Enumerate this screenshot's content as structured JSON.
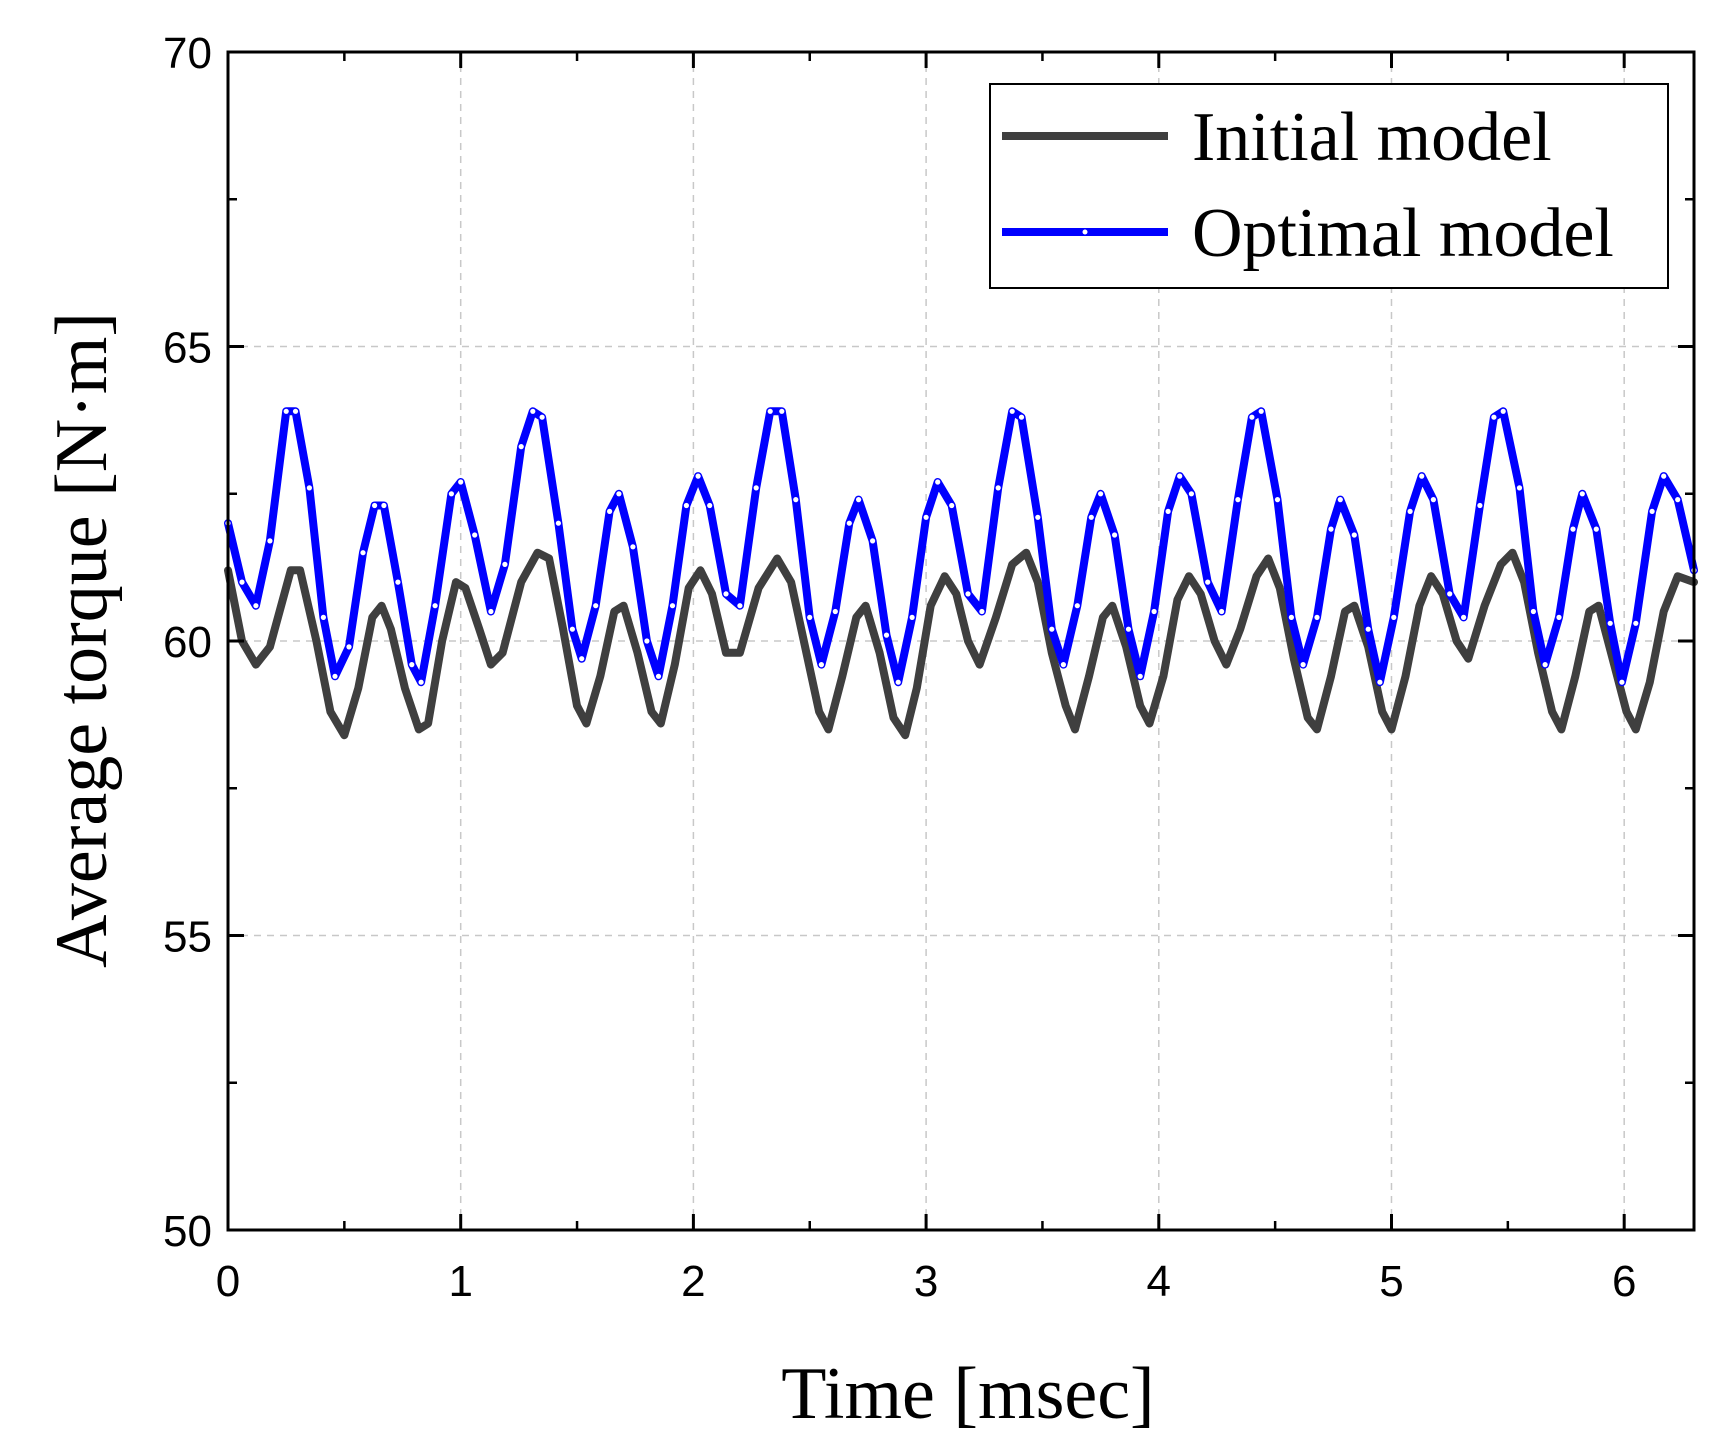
{
  "chart_data": {
    "type": "line",
    "xlabel": "Time [msec]",
    "ylabel": "Average torque [N·m]",
    "xlim": [
      0,
      6.3
    ],
    "ylim": [
      50,
      70
    ],
    "xticks": [
      "0",
      "1",
      "2",
      "3",
      "4",
      "5",
      "6"
    ],
    "yticks": [
      "50",
      "55",
      "60",
      "65",
      "70"
    ],
    "grid": true,
    "legend_position": "top-right",
    "series": [
      {
        "name": "Initial model",
        "color": "#3f3f3f",
        "points": [
          [
            0.0,
            61.2
          ],
          [
            0.06,
            60.0
          ],
          [
            0.12,
            59.6
          ],
          [
            0.18,
            59.9
          ],
          [
            0.27,
            61.2
          ],
          [
            0.31,
            61.2
          ],
          [
            0.38,
            60.0
          ],
          [
            0.44,
            58.8
          ],
          [
            0.5,
            58.4
          ],
          [
            0.56,
            59.2
          ],
          [
            0.62,
            60.4
          ],
          [
            0.66,
            60.6
          ],
          [
            0.7,
            60.2
          ],
          [
            0.76,
            59.2
          ],
          [
            0.82,
            58.5
          ],
          [
            0.86,
            58.6
          ],
          [
            0.92,
            60.0
          ],
          [
            0.98,
            61.0
          ],
          [
            1.02,
            60.9
          ],
          [
            1.08,
            60.2
          ],
          [
            1.13,
            59.6
          ],
          [
            1.18,
            59.8
          ],
          [
            1.26,
            61.0
          ],
          [
            1.33,
            61.5
          ],
          [
            1.38,
            61.4
          ],
          [
            1.44,
            60.2
          ],
          [
            1.5,
            58.9
          ],
          [
            1.54,
            58.6
          ],
          [
            1.6,
            59.4
          ],
          [
            1.66,
            60.5
          ],
          [
            1.7,
            60.6
          ],
          [
            1.76,
            59.8
          ],
          [
            1.82,
            58.8
          ],
          [
            1.86,
            58.6
          ],
          [
            1.92,
            59.6
          ],
          [
            1.98,
            60.9
          ],
          [
            2.03,
            61.2
          ],
          [
            2.08,
            60.8
          ],
          [
            2.14,
            59.8
          ],
          [
            2.2,
            59.8
          ],
          [
            2.28,
            60.9
          ],
          [
            2.36,
            61.4
          ],
          [
            2.42,
            61.0
          ],
          [
            2.48,
            59.9
          ],
          [
            2.54,
            58.8
          ],
          [
            2.58,
            58.5
          ],
          [
            2.64,
            59.4
          ],
          [
            2.7,
            60.4
          ],
          [
            2.74,
            60.6
          ],
          [
            2.8,
            59.8
          ],
          [
            2.86,
            58.7
          ],
          [
            2.91,
            58.4
          ],
          [
            2.96,
            59.2
          ],
          [
            3.02,
            60.6
          ],
          [
            3.08,
            61.1
          ],
          [
            3.13,
            60.8
          ],
          [
            3.18,
            60.0
          ],
          [
            3.23,
            59.6
          ],
          [
            3.3,
            60.4
          ],
          [
            3.37,
            61.3
          ],
          [
            3.43,
            61.5
          ],
          [
            3.48,
            61.0
          ],
          [
            3.54,
            59.8
          ],
          [
            3.6,
            58.9
          ],
          [
            3.64,
            58.5
          ],
          [
            3.7,
            59.4
          ],
          [
            3.76,
            60.4
          ],
          [
            3.8,
            60.6
          ],
          [
            3.86,
            59.9
          ],
          [
            3.92,
            58.9
          ],
          [
            3.96,
            58.6
          ],
          [
            4.02,
            59.4
          ],
          [
            4.08,
            60.7
          ],
          [
            4.13,
            61.1
          ],
          [
            4.18,
            60.8
          ],
          [
            4.24,
            60.0
          ],
          [
            4.29,
            59.6
          ],
          [
            4.35,
            60.2
          ],
          [
            4.42,
            61.1
          ],
          [
            4.47,
            61.4
          ],
          [
            4.52,
            60.9
          ],
          [
            4.58,
            59.7
          ],
          [
            4.64,
            58.7
          ],
          [
            4.68,
            58.5
          ],
          [
            4.74,
            59.4
          ],
          [
            4.8,
            60.5
          ],
          [
            4.84,
            60.6
          ],
          [
            4.9,
            59.9
          ],
          [
            4.96,
            58.8
          ],
          [
            5.0,
            58.5
          ],
          [
            5.06,
            59.4
          ],
          [
            5.12,
            60.6
          ],
          [
            5.17,
            61.1
          ],
          [
            5.22,
            60.8
          ],
          [
            5.28,
            60.0
          ],
          [
            5.33,
            59.7
          ],
          [
            5.4,
            60.6
          ],
          [
            5.47,
            61.3
          ],
          [
            5.52,
            61.5
          ],
          [
            5.57,
            61.0
          ],
          [
            5.63,
            59.8
          ],
          [
            5.69,
            58.8
          ],
          [
            5.73,
            58.5
          ],
          [
            5.79,
            59.4
          ],
          [
            5.85,
            60.5
          ],
          [
            5.89,
            60.6
          ],
          [
            5.95,
            59.7
          ],
          [
            6.01,
            58.8
          ],
          [
            6.05,
            58.5
          ],
          [
            6.11,
            59.3
          ],
          [
            6.17,
            60.5
          ],
          [
            6.23,
            61.1
          ],
          [
            6.3,
            61.0
          ]
        ]
      },
      {
        "name": "Optimal model",
        "color": "#0000ff",
        "points": [
          [
            0.0,
            62.0
          ],
          [
            0.06,
            61.0
          ],
          [
            0.12,
            60.6
          ],
          [
            0.18,
            61.7
          ],
          [
            0.25,
            63.9
          ],
          [
            0.29,
            63.9
          ],
          [
            0.35,
            62.6
          ],
          [
            0.41,
            60.4
          ],
          [
            0.46,
            59.4
          ],
          [
            0.52,
            59.9
          ],
          [
            0.58,
            61.5
          ],
          [
            0.63,
            62.3
          ],
          [
            0.67,
            62.3
          ],
          [
            0.73,
            61.0
          ],
          [
            0.79,
            59.6
          ],
          [
            0.83,
            59.3
          ],
          [
            0.89,
            60.6
          ],
          [
            0.96,
            62.5
          ],
          [
            1.0,
            62.7
          ],
          [
            1.06,
            61.8
          ],
          [
            1.13,
            60.5
          ],
          [
            1.19,
            61.3
          ],
          [
            1.26,
            63.3
          ],
          [
            1.31,
            63.9
          ],
          [
            1.35,
            63.8
          ],
          [
            1.42,
            62.0
          ],
          [
            1.48,
            60.2
          ],
          [
            1.52,
            59.7
          ],
          [
            1.58,
            60.6
          ],
          [
            1.64,
            62.2
          ],
          [
            1.68,
            62.5
          ],
          [
            1.74,
            61.6
          ],
          [
            1.8,
            60.0
          ],
          [
            1.85,
            59.4
          ],
          [
            1.91,
            60.6
          ],
          [
            1.97,
            62.3
          ],
          [
            2.02,
            62.8
          ],
          [
            2.07,
            62.3
          ],
          [
            2.14,
            60.8
          ],
          [
            2.2,
            60.6
          ],
          [
            2.27,
            62.6
          ],
          [
            2.33,
            63.9
          ],
          [
            2.38,
            63.9
          ],
          [
            2.44,
            62.4
          ],
          [
            2.5,
            60.4
          ],
          [
            2.55,
            59.6
          ],
          [
            2.61,
            60.5
          ],
          [
            2.67,
            62.0
          ],
          [
            2.71,
            62.4
          ],
          [
            2.77,
            61.7
          ],
          [
            2.83,
            60.1
          ],
          [
            2.88,
            59.3
          ],
          [
            2.94,
            60.4
          ],
          [
            3.0,
            62.1
          ],
          [
            3.05,
            62.7
          ],
          [
            3.11,
            62.3
          ],
          [
            3.18,
            60.8
          ],
          [
            3.24,
            60.5
          ],
          [
            3.31,
            62.6
          ],
          [
            3.37,
            63.9
          ],
          [
            3.41,
            63.8
          ],
          [
            3.48,
            62.1
          ],
          [
            3.54,
            60.2
          ],
          [
            3.59,
            59.6
          ],
          [
            3.65,
            60.6
          ],
          [
            3.71,
            62.1
          ],
          [
            3.75,
            62.5
          ],
          [
            3.81,
            61.8
          ],
          [
            3.87,
            60.2
          ],
          [
            3.92,
            59.4
          ],
          [
            3.98,
            60.5
          ],
          [
            4.04,
            62.2
          ],
          [
            4.09,
            62.8
          ],
          [
            4.14,
            62.5
          ],
          [
            4.21,
            61.0
          ],
          [
            4.27,
            60.5
          ],
          [
            4.34,
            62.4
          ],
          [
            4.4,
            63.8
          ],
          [
            4.44,
            63.9
          ],
          [
            4.51,
            62.4
          ],
          [
            4.57,
            60.4
          ],
          [
            4.62,
            59.6
          ],
          [
            4.68,
            60.4
          ],
          [
            4.74,
            61.9
          ],
          [
            4.78,
            62.4
          ],
          [
            4.84,
            61.8
          ],
          [
            4.9,
            60.2
          ],
          [
            4.95,
            59.3
          ],
          [
            5.01,
            60.4
          ],
          [
            5.08,
            62.2
          ],
          [
            5.13,
            62.8
          ],
          [
            5.18,
            62.4
          ],
          [
            5.25,
            60.8
          ],
          [
            5.31,
            60.4
          ],
          [
            5.38,
            62.3
          ],
          [
            5.44,
            63.8
          ],
          [
            5.48,
            63.9
          ],
          [
            5.55,
            62.6
          ],
          [
            5.61,
            60.5
          ],
          [
            5.66,
            59.6
          ],
          [
            5.72,
            60.4
          ],
          [
            5.78,
            61.9
          ],
          [
            5.82,
            62.5
          ],
          [
            5.88,
            61.9
          ],
          [
            5.94,
            60.3
          ],
          [
            5.99,
            59.3
          ],
          [
            6.05,
            60.3
          ],
          [
            6.12,
            62.2
          ],
          [
            6.17,
            62.8
          ],
          [
            6.23,
            62.4
          ],
          [
            6.3,
            61.2
          ]
        ]
      }
    ]
  }
}
